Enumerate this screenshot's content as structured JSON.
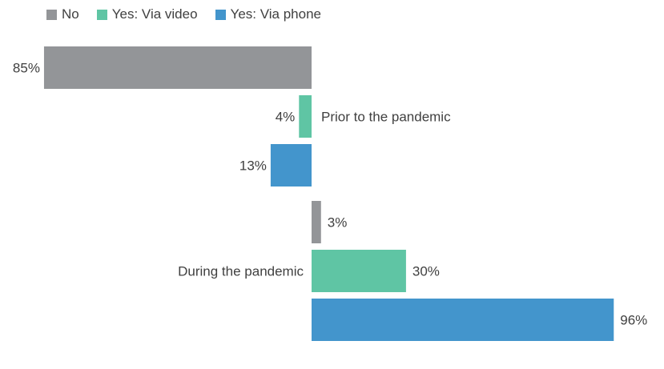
{
  "chart_data": {
    "type": "bar",
    "orientation": "diverging-horizontal",
    "legend_position": "top-left",
    "categories": [
      "Prior to the pandemic",
      "During the pandemic"
    ],
    "series": [
      {
        "name": "No",
        "color": "#939598",
        "values": [
          85,
          3
        ],
        "labels": [
          "85%",
          "3%"
        ]
      },
      {
        "name": "Yes: Via video",
        "color": "#5fc5a4",
        "values": [
          4,
          30
        ],
        "labels": [
          "4%",
          "30%"
        ]
      },
      {
        "name": "Yes: Via phone",
        "color": "#4395cc",
        "values": [
          13,
          96
        ],
        "labels": [
          "13%",
          "96%"
        ]
      }
    ]
  }
}
